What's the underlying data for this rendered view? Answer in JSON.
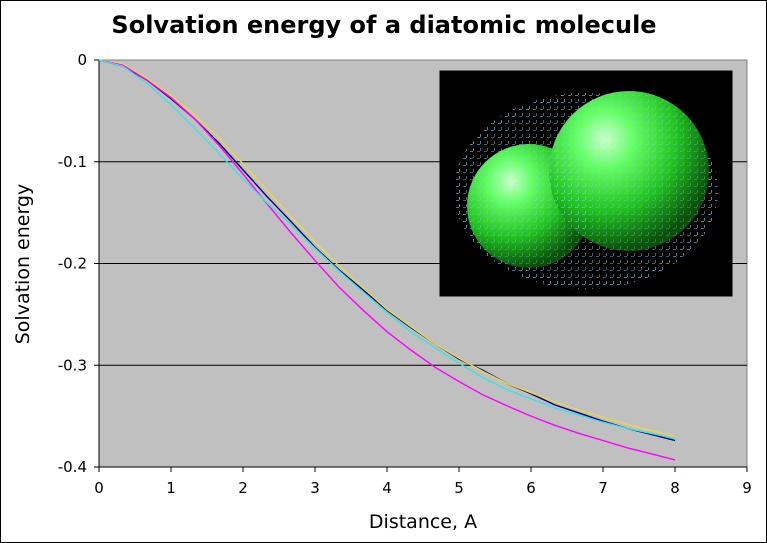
{
  "chart_data": {
    "type": "line",
    "title": "Solvation energy of a diatomic molecule",
    "xlabel": "Distance, A",
    "ylabel": "Solvation energy",
    "xlim": [
      0,
      9
    ],
    "ylim": [
      -0.4,
      0
    ],
    "x_ticks": [
      "0",
      "1",
      "2",
      "3",
      "4",
      "5",
      "6",
      "7",
      "8",
      "9"
    ],
    "y_ticks": [
      "0",
      "-0.1",
      "-0.2",
      "-0.3",
      "-0.4"
    ],
    "grid": true,
    "legend": "none",
    "inset": "3D rendering of two overlapping green spheres with a cyan solvent-accessible surface point grid",
    "series": [
      {
        "name": "navy",
        "color": "#000080",
        "x": [
          0,
          0.33,
          0.67,
          1,
          1.33,
          1.67,
          2,
          2.33,
          2.67,
          3,
          3.33,
          3.67,
          4,
          4.33,
          4.67,
          5,
          5.33,
          5.67,
          6,
          6.33,
          6.67,
          7,
          7.33,
          7.67,
          8
        ],
        "y": [
          0,
          -0.006,
          -0.02,
          -0.038,
          -0.058,
          -0.082,
          -0.108,
          -0.134,
          -0.159,
          -0.184,
          -0.206,
          -0.226,
          -0.246,
          -0.263,
          -0.279,
          -0.294,
          -0.305,
          -0.318,
          -0.328,
          -0.339,
          -0.347,
          -0.355,
          -0.362,
          -0.368,
          -0.374
        ]
      },
      {
        "name": "yellow",
        "color": "#e6d84a",
        "x": [
          0,
          0.33,
          0.67,
          1,
          1.33,
          1.67,
          2,
          2.33,
          2.67,
          3,
          3.33,
          3.67,
          4,
          4.33,
          4.67,
          5,
          5.33,
          5.67,
          6,
          6.33,
          6.67,
          7,
          7.33,
          7.67,
          8
        ],
        "y": [
          0,
          -0.004,
          -0.018,
          -0.035,
          -0.054,
          -0.077,
          -0.102,
          -0.128,
          -0.154,
          -0.179,
          -0.202,
          -0.224,
          -0.245,
          -0.262,
          -0.279,
          -0.293,
          -0.306,
          -0.318,
          -0.327,
          -0.336,
          -0.344,
          -0.351,
          -0.358,
          -0.364,
          -0.37
        ]
      },
      {
        "name": "magenta",
        "color": "#ff00ff",
        "x": [
          0,
          0.33,
          0.67,
          1,
          1.33,
          1.67,
          2,
          2.33,
          2.67,
          3,
          3.33,
          3.67,
          4,
          4.33,
          4.67,
          5,
          5.33,
          5.67,
          6,
          6.33,
          6.67,
          7,
          7.33,
          7.67,
          8
        ],
        "y": [
          0,
          -0.005,
          -0.02,
          -0.037,
          -0.058,
          -0.084,
          -0.112,
          -0.141,
          -0.17,
          -0.197,
          -0.223,
          -0.246,
          -0.267,
          -0.285,
          -0.302,
          -0.316,
          -0.329,
          -0.34,
          -0.35,
          -0.359,
          -0.367,
          -0.374,
          -0.381,
          -0.387,
          -0.393
        ]
      },
      {
        "name": "cyan",
        "color": "#40e0e0",
        "x": [
          0,
          0.33,
          0.67,
          1,
          1.33,
          1.67,
          2,
          2.33,
          2.67,
          3,
          3.33,
          3.67,
          4,
          4.33,
          4.67,
          5,
          5.33,
          5.67,
          6,
          6.33,
          6.67,
          7,
          7.33,
          7.67,
          8
        ],
        "y": [
          0,
          -0.006,
          -0.023,
          -0.044,
          -0.067,
          -0.092,
          -0.117,
          -0.14,
          -0.162,
          -0.185,
          -0.207,
          -0.228,
          -0.248,
          -0.267,
          -0.283,
          -0.298,
          -0.312,
          -0.324,
          -0.333,
          -0.342,
          -0.349,
          -0.356,
          -0.362,
          -0.367,
          -0.372
        ]
      }
    ]
  }
}
